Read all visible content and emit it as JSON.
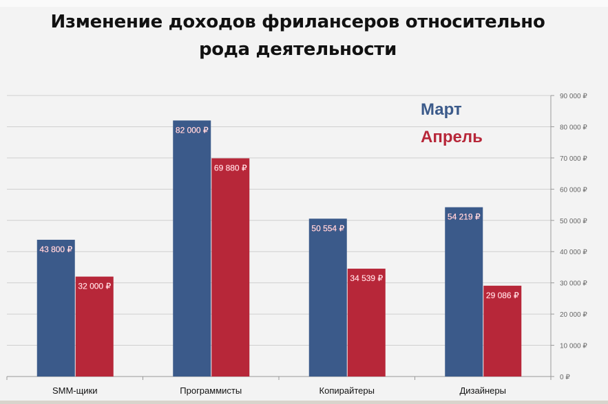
{
  "chart_data": {
    "type": "bar",
    "title_line1": "Изменение доходов фрилансеров относительно",
    "title_line2": "рода деятельности",
    "categories": [
      "SMM-щики",
      "Программисты",
      "Копирайтеры",
      "Дизайнеры"
    ],
    "series": [
      {
        "name": "Март",
        "color": "#3b5a8a",
        "values": [
          43800,
          82000,
          50554,
          54219
        ],
        "labels": [
          "43 800 ₽",
          "82 000 ₽",
          "50 554 ₽",
          "54 219 ₽"
        ]
      },
      {
        "name": "Апрель",
        "color": "#b72739",
        "values": [
          32000,
          69880,
          34539,
          29086
        ],
        "labels": [
          "32 000 ₽",
          "69 880 ₽",
          "34 539 ₽",
          "29 086 ₽"
        ]
      }
    ],
    "ylim": [
      0,
      90000
    ],
    "yticks": [
      0,
      10000,
      20000,
      30000,
      40000,
      50000,
      60000,
      70000,
      80000,
      90000
    ],
    "ytick_labels": [
      "0 ₽",
      "10 000 ₽",
      "20 000 ₽",
      "30 000 ₽",
      "40 000 ₽",
      "50 000 ₽",
      "60 000 ₽",
      "70 000 ₽",
      "80 000 ₽",
      "90 000 ₽"
    ],
    "y_axis_position": "right",
    "grid": true,
    "legend_position": "top-right",
    "xlabel": "",
    "ylabel": ""
  }
}
